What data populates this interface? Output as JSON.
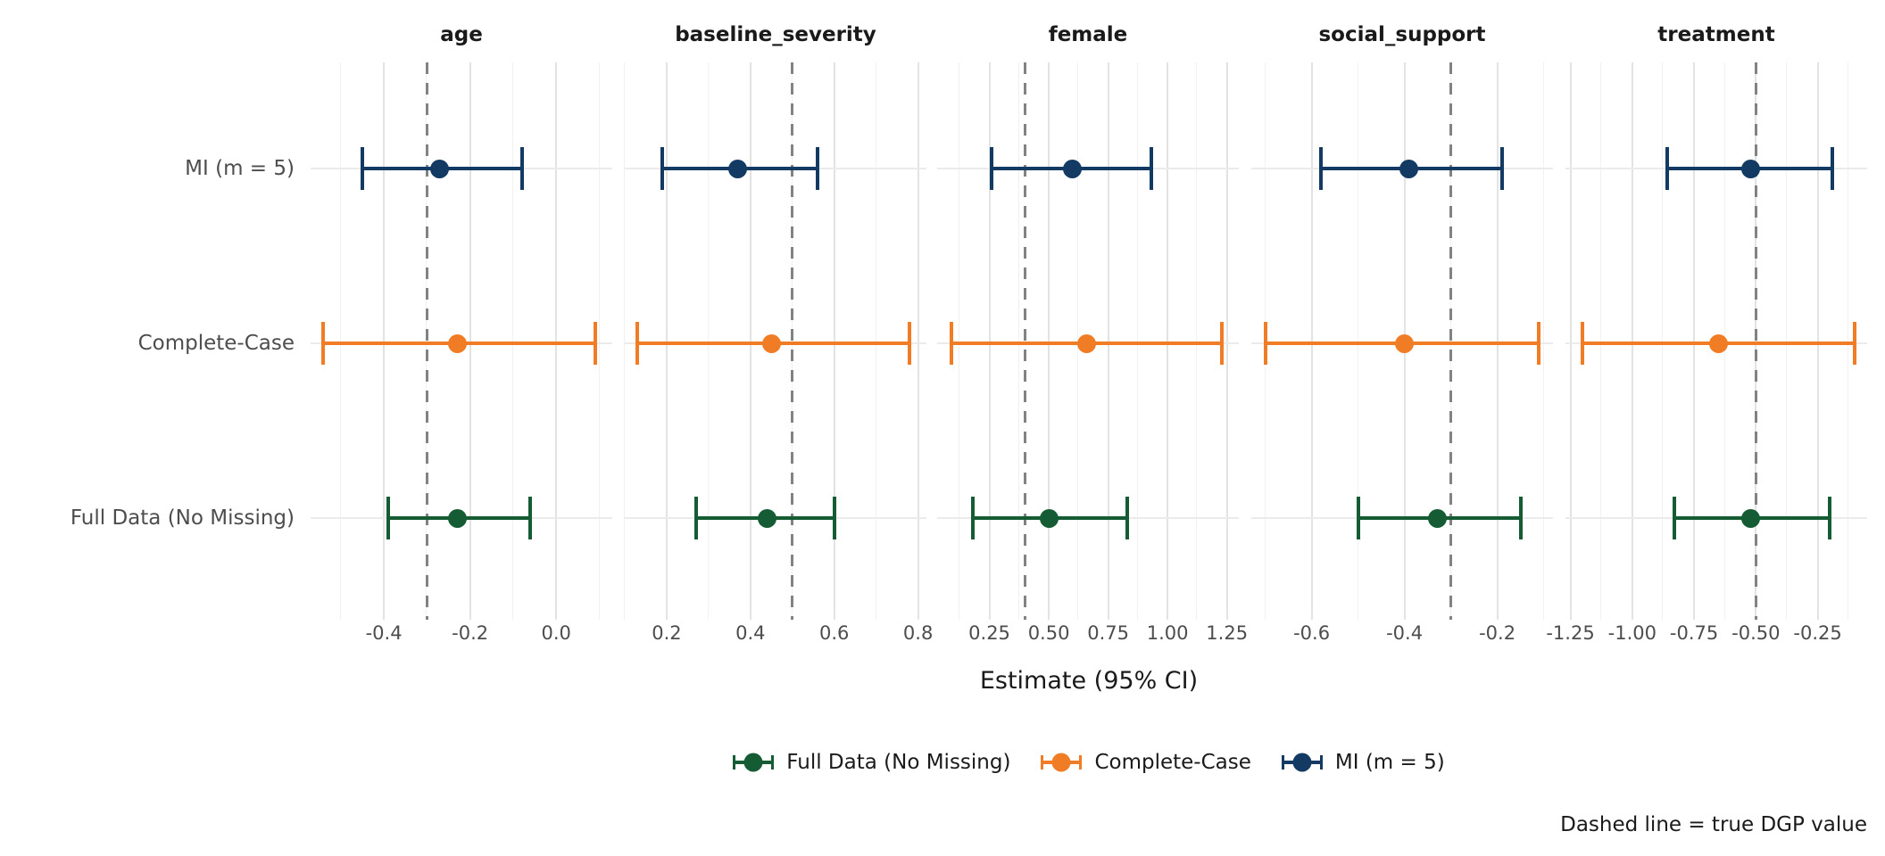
{
  "chart_data": {
    "type": "forest-errorbar",
    "xlabel": "Estimate (95% CI)",
    "caption": "Dashed line = true DGP value",
    "note": "Dashed line = true DGP value",
    "y_categories": [
      "MI (m = 5)",
      "Complete-Case",
      "Full Data (No Missing)"
    ],
    "legend_entries": [
      "Full Data (No Missing)",
      "Complete-Case",
      "MI (m = 5)"
    ],
    "legend_position": "bottom-center",
    "grid": true,
    "series_colors": {
      "Full Data (No Missing)": "#155C34",
      "Complete-Case": "#F07D26",
      "MI (m = 5)": "#133A63"
    },
    "dashed_line_color": "#828282",
    "facets": [
      {
        "label": "age",
        "xlim": [
          -0.57,
          0.13
        ],
        "ticks": [
          -0.4,
          -0.2,
          0.0
        ],
        "tick_labels": [
          "-0.4",
          "-0.2",
          "0.0"
        ],
        "minor_step": 0.1,
        "true_value": -0.3,
        "rows": [
          {
            "method": "MI (m = 5)",
            "estimate": -0.27,
            "lo": -0.45,
            "hi": -0.08
          },
          {
            "method": "Complete-Case",
            "estimate": -0.23,
            "lo": -0.54,
            "hi": 0.09
          },
          {
            "method": "Full Data (No Missing)",
            "estimate": -0.23,
            "lo": -0.39,
            "hi": -0.06
          }
        ]
      },
      {
        "label": "baseline_severity",
        "xlim": [
          0.1,
          0.82
        ],
        "ticks": [
          0.2,
          0.4,
          0.6,
          0.8
        ],
        "tick_labels": [
          "0.2",
          "0.4",
          "0.6",
          "0.8"
        ],
        "minor_step": 0.1,
        "true_value": 0.5,
        "rows": [
          {
            "method": "MI (m = 5)",
            "estimate": 0.37,
            "lo": 0.19,
            "hi": 0.56
          },
          {
            "method": "Complete-Case",
            "estimate": 0.45,
            "lo": 0.13,
            "hi": 0.78
          },
          {
            "method": "Full Data (No Missing)",
            "estimate": 0.44,
            "lo": 0.27,
            "hi": 0.6
          }
        ]
      },
      {
        "label": "female",
        "xlim": [
          0.03,
          1.3
        ],
        "ticks": [
          0.25,
          0.5,
          0.75,
          1.0,
          1.25
        ],
        "tick_labels": [
          "0.25",
          "0.50",
          "0.75",
          "1.00",
          "1.25"
        ],
        "minor_step": 0.125,
        "true_value": 0.4,
        "rows": [
          {
            "method": "MI (m = 5)",
            "estimate": 0.6,
            "lo": 0.26,
            "hi": 0.93
          },
          {
            "method": "Complete-Case",
            "estimate": 0.66,
            "lo": 0.09,
            "hi": 1.23
          },
          {
            "method": "Full Data (No Missing)",
            "estimate": 0.5,
            "lo": 0.18,
            "hi": 0.83
          }
        ]
      },
      {
        "label": "social_support",
        "xlim": [
          -0.73,
          -0.08
        ],
        "ticks": [
          -0.6,
          -0.4,
          -0.2
        ],
        "tick_labels": [
          "-0.6",
          "-0.4",
          "-0.2"
        ],
        "minor_step": 0.1,
        "true_value": -0.3,
        "rows": [
          {
            "method": "MI (m = 5)",
            "estimate": -0.39,
            "lo": -0.58,
            "hi": -0.19
          },
          {
            "method": "Complete-Case",
            "estimate": -0.4,
            "lo": -0.7,
            "hi": -0.11
          },
          {
            "method": "Full Data (No Missing)",
            "estimate": -0.33,
            "lo": -0.5,
            "hi": -0.15
          }
        ]
      },
      {
        "label": "treatment",
        "xlim": [
          -1.27,
          -0.05
        ],
        "ticks": [
          -1.25,
          -1.0,
          -0.75,
          -0.5,
          -0.25
        ],
        "tick_labels": [
          "-1.25",
          "-1.00",
          "-0.75",
          "-0.50",
          "-0.25"
        ],
        "minor_step": 0.125,
        "true_value": -0.5,
        "rows": [
          {
            "method": "MI (m = 5)",
            "estimate": -0.52,
            "lo": -0.86,
            "hi": -0.19
          },
          {
            "method": "Complete-Case",
            "estimate": -0.65,
            "lo": -1.2,
            "hi": -0.1
          },
          {
            "method": "Full Data (No Missing)",
            "estimate": -0.52,
            "lo": -0.83,
            "hi": -0.2
          }
        ]
      }
    ]
  }
}
